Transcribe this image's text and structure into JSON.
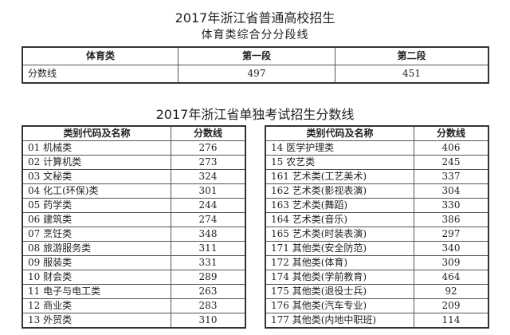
{
  "title": "2017年浙江省普通高校招生",
  "subtitle": "体育类综合分分段线",
  "sports_table": {
    "headers": [
      "体育类",
      "第一段",
      "第二段"
    ],
    "row": [
      "分数线",
      "497",
      "451"
    ]
  },
  "title2": "2017年浙江省单独考试招生分数线",
  "single_exam": {
    "headers": [
      "类别代码及名称",
      "分数线"
    ],
    "left": [
      [
        "01  机械类",
        "276"
      ],
      [
        "02  计算机类",
        "273"
      ],
      [
        "03  文秘类",
        "324"
      ],
      [
        "04  化工(环保)类",
        "301"
      ],
      [
        "05  药学类",
        "244"
      ],
      [
        "06  建筑类",
        "274"
      ],
      [
        "07  烹饪类",
        "348"
      ],
      [
        "08  旅游服务类",
        "311"
      ],
      [
        "09  服装类",
        "331"
      ],
      [
        "10  财会类",
        "289"
      ],
      [
        "11  电子与电工类",
        "263"
      ],
      [
        "12  商业类",
        "283"
      ],
      [
        "13  外贸类",
        "310"
      ]
    ],
    "right": [
      [
        "14  医学护理类",
        "406"
      ],
      [
        "15  农艺类",
        "245"
      ],
      [
        "161  艺术类(工艺美术)",
        "337"
      ],
      [
        "162  艺术类(影视表演)",
        "304"
      ],
      [
        "163  艺术类(舞蹈)",
        "330"
      ],
      [
        "164  艺术类(音乐)",
        "386"
      ],
      [
        "165  艺术类(时装表演)",
        "297"
      ],
      [
        "171  其他类(安全防范)",
        "340"
      ],
      [
        "172  其他类(体育)",
        "309"
      ],
      [
        "174  其他类(学前教育)",
        "464"
      ],
      [
        "175  其他类(退役士兵)",
        "92"
      ],
      [
        "176  其他类(汽车专业)",
        "209"
      ],
      [
        "177  其他类(内地中职班)",
        "114"
      ]
    ]
  }
}
